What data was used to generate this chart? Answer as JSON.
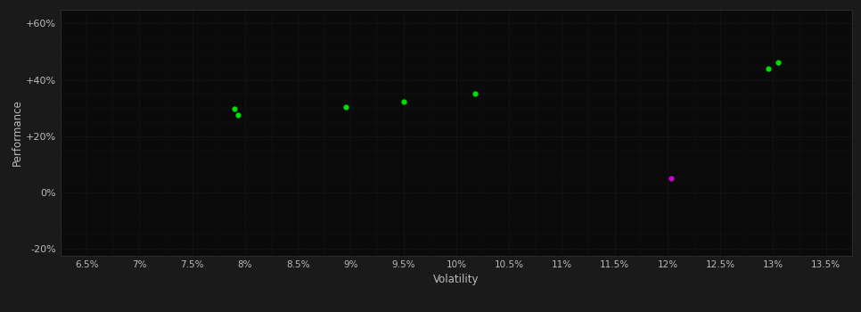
{
  "background_color": "#1a1a1a",
  "plot_bg_color": "#0a0a0a",
  "grid_color": "#2a2a2a",
  "text_color": "#bbbbbb",
  "xlabel": "Volatility",
  "ylabel": "Performance",
  "xlim": [
    0.0625,
    0.1375
  ],
  "ylim": [
    -0.225,
    0.65
  ],
  "xticks": [
    0.065,
    0.07,
    0.075,
    0.08,
    0.085,
    0.09,
    0.095,
    0.1,
    0.105,
    0.11,
    0.115,
    0.12,
    0.125,
    0.13,
    0.135
  ],
  "xtick_labels": [
    "6.5%",
    "7%",
    "7.5%",
    "8%",
    "8.5%",
    "9%",
    "9.5%",
    "10%",
    "10.5%",
    "11%",
    "11.5%",
    "12%",
    "12.5%",
    "13%",
    "13.5%"
  ],
  "yticks": [
    -0.2,
    0.0,
    0.2,
    0.4,
    0.6
  ],
  "ytick_labels": [
    "-20%",
    "0%",
    "+20%",
    "+40%",
    "+60%"
  ],
  "minor_yticks": [
    -0.2,
    -0.15,
    -0.1,
    -0.05,
    0.0,
    0.05,
    0.1,
    0.15,
    0.2,
    0.25,
    0.3,
    0.35,
    0.4,
    0.45,
    0.5,
    0.55,
    0.6
  ],
  "green_points": [
    [
      0.079,
      0.298
    ],
    [
      0.0793,
      0.275
    ],
    [
      0.0895,
      0.303
    ],
    [
      0.095,
      0.323
    ],
    [
      0.1018,
      0.352
    ],
    [
      0.1295,
      0.44
    ],
    [
      0.1305,
      0.462
    ]
  ],
  "magenta_points": [
    [
      0.1203,
      0.05
    ]
  ],
  "green_color": "#00dd00",
  "magenta_color": "#cc00cc",
  "marker_size": 4.5
}
